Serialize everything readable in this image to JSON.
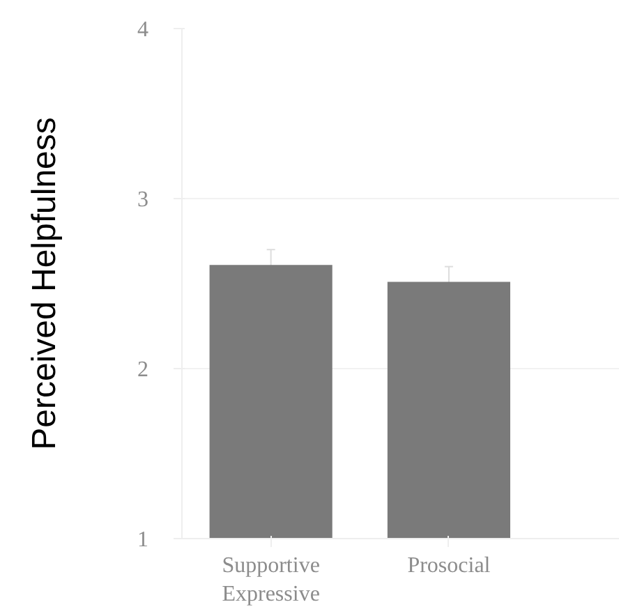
{
  "chart_data": {
    "type": "bar",
    "ylabel": "Perceived Helpfulness",
    "categories": [
      "Supportive\nExpressive",
      "Prosocial"
    ],
    "values": [
      2.61,
      2.51
    ],
    "errors": [
      0.09,
      0.09
    ],
    "color": "#7a7a7a",
    "ylim": [
      1,
      4
    ],
    "yticks": [
      1,
      2,
      3,
      4
    ],
    "grid": "y"
  }
}
